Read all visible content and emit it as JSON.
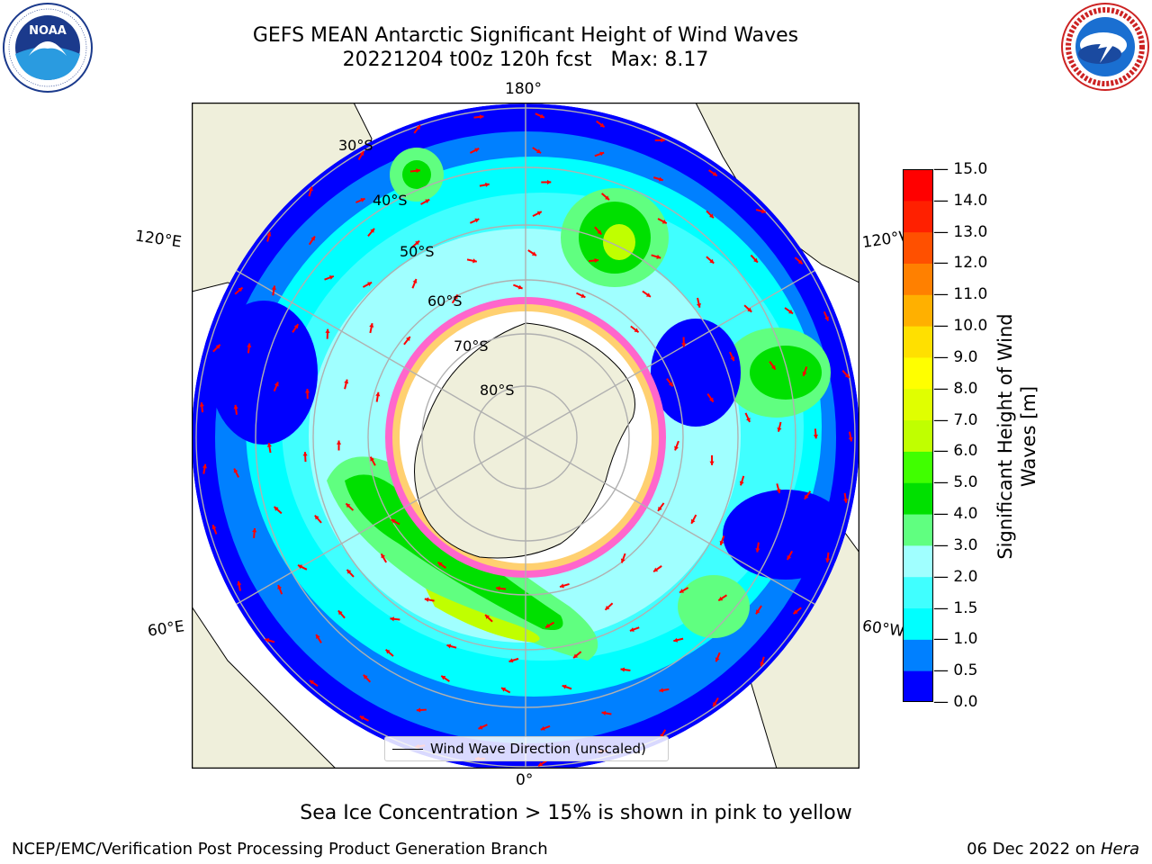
{
  "title": {
    "line1": "GEFS MEAN Antarctic Significant Height of Wind Waves",
    "line2": "20221204 t00z 120h fcst   Max: 8.17"
  },
  "logos": {
    "noaa": {
      "text": "NOAA",
      "ring_text": "NATIONAL OCEANIC AND ATMOSPHERIC ADMINISTRATION • U.S. DEPARTMENT OF COMMERCE"
    },
    "nws": {
      "ring_text": "NATIONAL WEATHER SERVICE"
    }
  },
  "map": {
    "projection": "south-polar-stereographic",
    "longitude_labels": [
      "180°",
      "120°E",
      "120°W",
      "60°E",
      "60°W",
      "0°"
    ],
    "latitude_labels": [
      "30°S",
      "40°S",
      "50°S",
      "60°S",
      "70°S",
      "80°S"
    ],
    "colors": {
      "land": "#efefdb",
      "ocean_low": "#0000ff",
      "grid": "#b0b0b0",
      "arrows": "#ff0000",
      "ice": "#ff66cc"
    }
  },
  "legend": {
    "label": "Wind Wave Direction (unscaled)"
  },
  "colorbar": {
    "label": "Significant Height of Wind Waves [m]",
    "ticks": [
      "0.0",
      "0.5",
      "1.0",
      "1.5",
      "2.0",
      "3.0",
      "4.0",
      "5.0",
      "6.0",
      "7.0",
      "8.0",
      "9.0",
      "10.0",
      "11.0",
      "12.0",
      "13.0",
      "14.0",
      "15.0"
    ],
    "colors": [
      "#0000ff",
      "#0080ff",
      "#00ffff",
      "#40ffff",
      "#a0ffff",
      "#60ff80",
      "#00e000",
      "#40ff00",
      "#c0ff00",
      "#e0ff00",
      "#ffff00",
      "#ffe000",
      "#ffb000",
      "#ff8000",
      "#ff5000",
      "#ff2000",
      "#ff0000"
    ]
  },
  "note": "Sea Ice Concentration > 15% is shown in pink to yellow",
  "footer": {
    "left": "NCEP/EMC/Verification Post Processing Product Generation Branch",
    "right_date": "06 Dec 2022 on",
    "right_host": "Hera"
  }
}
